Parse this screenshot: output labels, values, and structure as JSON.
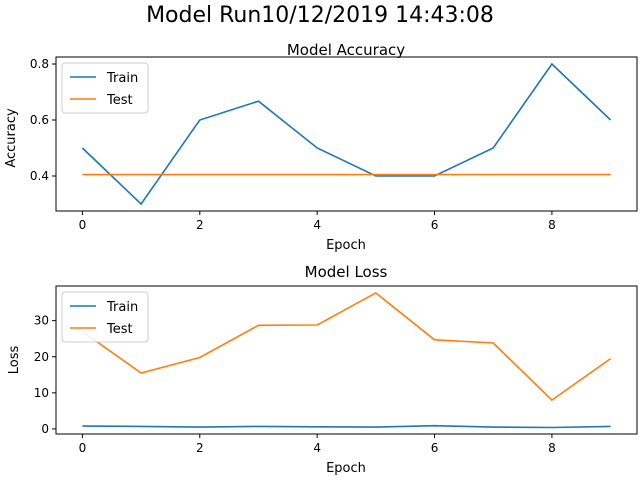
{
  "figure": {
    "suptitle": "Model Run10/12/2019 14:43:08"
  },
  "chart_data": [
    {
      "type": "line",
      "title": "Model Accuracy",
      "xlabel": "Epoch",
      "ylabel": "Accuracy",
      "xlim": [
        -0.45,
        9.45
      ],
      "ylim": [
        0.275,
        0.825
      ],
      "xticks": [
        0,
        2,
        4,
        6,
        8
      ],
      "yticks": [
        0.4,
        0.6,
        0.8
      ],
      "x": [
        0,
        1,
        2,
        3,
        4,
        5,
        6,
        7,
        8,
        9
      ],
      "series": [
        {
          "name": "Train",
          "color": "#1f77b4",
          "values": [
            0.5,
            0.3,
            0.6,
            0.667,
            0.5,
            0.4,
            0.4,
            0.5,
            0.8,
            0.6
          ]
        },
        {
          "name": "Test",
          "color": "#ff7f0e",
          "values": [
            0.405,
            0.405,
            0.405,
            0.405,
            0.405,
            0.405,
            0.405,
            0.405,
            0.405,
            0.405
          ]
        }
      ],
      "legend": "upper left",
      "grid": false
    },
    {
      "type": "line",
      "title": "Model Loss",
      "xlabel": "Epoch",
      "ylabel": "Loss",
      "xlim": [
        -0.45,
        9.45
      ],
      "ylim": [
        -1.4,
        39.6
      ],
      "xticks": [
        0,
        2,
        4,
        6,
        8
      ],
      "yticks": [
        0,
        10,
        20,
        30
      ],
      "x": [
        0,
        1,
        2,
        3,
        4,
        5,
        6,
        7,
        8,
        9
      ],
      "series": [
        {
          "name": "Train",
          "color": "#1f77b4",
          "values": [
            0.8,
            0.7,
            0.5,
            0.7,
            0.6,
            0.5,
            0.9,
            0.5,
            0.4,
            0.7
          ]
        },
        {
          "name": "Test",
          "color": "#ff7f0e",
          "values": [
            27.0,
            15.5,
            19.8,
            28.7,
            28.8,
            37.7,
            24.7,
            23.8,
            8.0,
            19.5
          ]
        }
      ],
      "legend": "upper left",
      "grid": false
    }
  ]
}
